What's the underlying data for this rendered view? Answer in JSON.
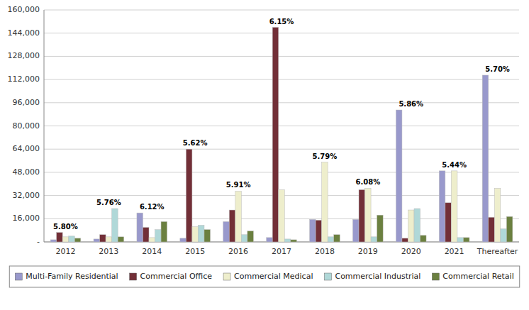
{
  "chart_data": {
    "type": "bar",
    "categories": [
      "2012",
      "2013",
      "2014",
      "2015",
      "2016",
      "2017",
      "2018",
      "2019",
      "2020",
      "2021",
      "Thereafter"
    ],
    "series": [
      {
        "name": "Multi-Family Residential",
        "color": "#9999CC",
        "values": [
          1500,
          2000,
          20000,
          2500,
          14000,
          3000,
          15500,
          15500,
          91000,
          49000,
          115000
        ]
      },
      {
        "name": "Commercial Office",
        "color": "#722F37",
        "values": [
          6500,
          5000,
          10000,
          64000,
          22000,
          148000,
          15000,
          36000,
          2500,
          27000,
          17000
        ]
      },
      {
        "name": "Commercial Medical",
        "color": "#EEEECC",
        "values": [
          3500,
          3500,
          3000,
          10500,
          35000,
          36000,
          55000,
          37000,
          22000,
          49000,
          37000
        ]
      },
      {
        "name": "Commercial Industrial",
        "color": "#B0D8D8",
        "values": [
          4000,
          23000,
          8500,
          11500,
          5000,
          2000,
          3500,
          3500,
          23000,
          3000,
          9000
        ]
      },
      {
        "name": "Commercial Retail",
        "color": "#6B8040",
        "values": [
          2500,
          3500,
          14000,
          8500,
          7500,
          1500,
          5000,
          18500,
          4500,
          3000,
          17500
        ]
      }
    ],
    "annotations": [
      "5.80%",
      "5.76%",
      "6.12%",
      "5.62%",
      "5.91%",
      "6.15%",
      "5.79%",
      "6.08%",
      "5.86%",
      "5.44%",
      "5.70%"
    ],
    "ylim": [
      0,
      160000
    ],
    "yticks": [
      {
        "value": 0,
        "label": "-"
      },
      {
        "value": 16000,
        "label": "16,000"
      },
      {
        "value": 32000,
        "label": "32,000"
      },
      {
        "value": 48000,
        "label": "48,000"
      },
      {
        "value": 64000,
        "label": "64,000"
      },
      {
        "value": 80000,
        "label": "80,000"
      },
      {
        "value": 96000,
        "label": "96,000"
      },
      {
        "value": 112000,
        "label": "112,000"
      },
      {
        "value": 128000,
        "label": "128,000"
      },
      {
        "value": 144000,
        "label": "144,000"
      },
      {
        "value": 160000,
        "label": "160,000"
      }
    ],
    "grid": true,
    "legend": "bottom"
  }
}
